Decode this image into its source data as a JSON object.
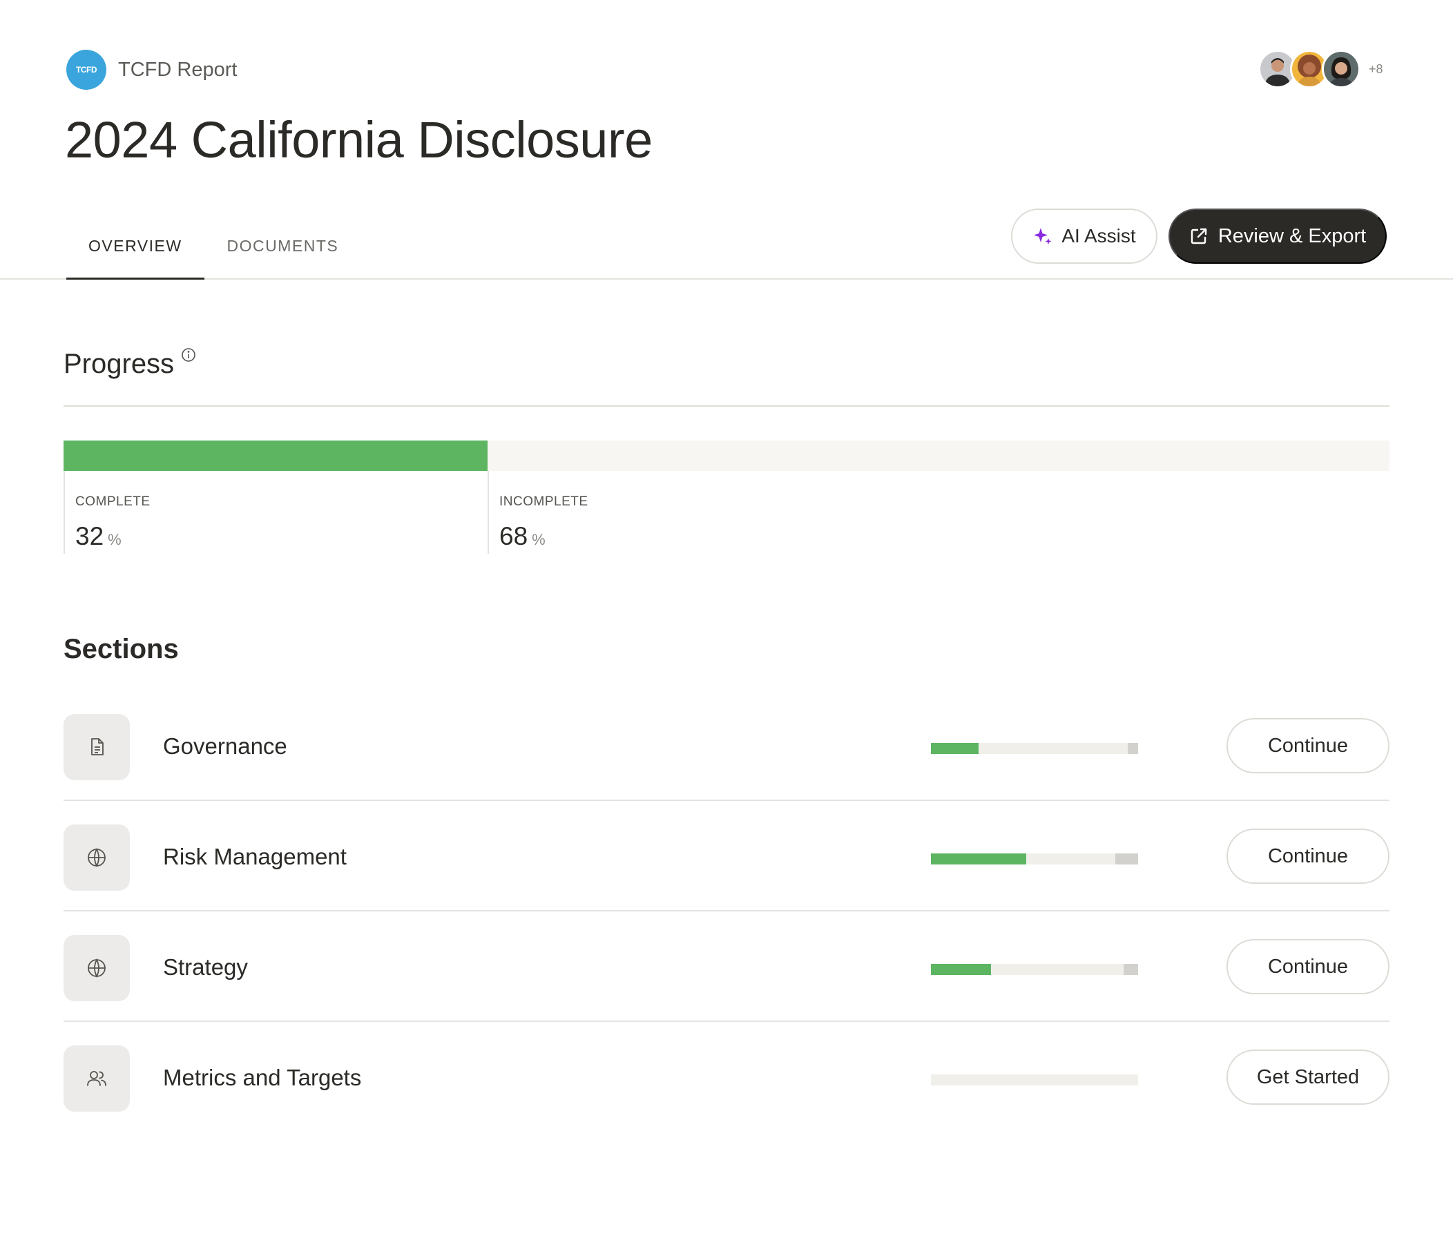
{
  "header": {
    "brand_logo_text": "TCFD",
    "brand_name": "TCFD Report",
    "title": "2024 California Disclosure",
    "collaborators": {
      "avatars": [
        "avatar-man",
        "avatar-woman-curly",
        "avatar-woman"
      ],
      "extra_count": "+8"
    },
    "tabs": [
      {
        "label": "OVERVIEW",
        "active": true
      },
      {
        "label": "DOCUMENTS",
        "active": false
      }
    ],
    "ai_assist_label": "AI Assist",
    "review_export_label": "Review & Export"
  },
  "progress": {
    "title": "Progress",
    "complete_fraction": 0.32,
    "complete": {
      "label": "COMPLETE",
      "value": "32",
      "unit": "%"
    },
    "incomplete": {
      "label": "INCOMPLETE",
      "value": "68",
      "unit": "%"
    }
  },
  "sections": {
    "title": "Sections",
    "items": [
      {
        "name": "Governance",
        "icon": "document-icon",
        "complete": 0.23,
        "pending": 0.05,
        "button": "Continue"
      },
      {
        "name": "Risk Management",
        "icon": "globe-icon",
        "complete": 0.46,
        "pending": 0.11,
        "button": "Continue"
      },
      {
        "name": "Strategy",
        "icon": "globe-icon",
        "complete": 0.29,
        "pending": 0.07,
        "button": "Continue"
      },
      {
        "name": "Metrics and Targets",
        "icon": "users-icon",
        "complete": 0,
        "pending": 0,
        "button": "Get Started"
      }
    ]
  },
  "colors": {
    "accent_green": "#5db561",
    "brand_blue": "#3aa5dc",
    "dark_button": "#2b2a27",
    "ai_sparkle": "#8a2be2"
  }
}
